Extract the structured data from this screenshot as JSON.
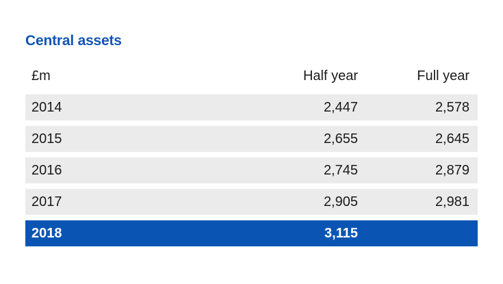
{
  "title": "Central assets",
  "header": {
    "unit": "£m",
    "half_year": "Half year",
    "full_year": "Full year"
  },
  "rows": [
    {
      "year": "2014",
      "half_year": "2,447",
      "full_year": "2,578"
    },
    {
      "year": "2015",
      "half_year": "2,655",
      "full_year": "2,645"
    },
    {
      "year": "2016",
      "half_year": "2,745",
      "full_year": "2,879"
    },
    {
      "year": "2017",
      "half_year": "2,905",
      "full_year": "2,981"
    },
    {
      "year": "2018",
      "half_year": "3,115",
      "full_year": ""
    }
  ],
  "colors": {
    "title": "#1155b6",
    "row_background": "#ebebeb",
    "highlight_background": "#0a55b4",
    "highlight_text": "#ffffff"
  }
}
